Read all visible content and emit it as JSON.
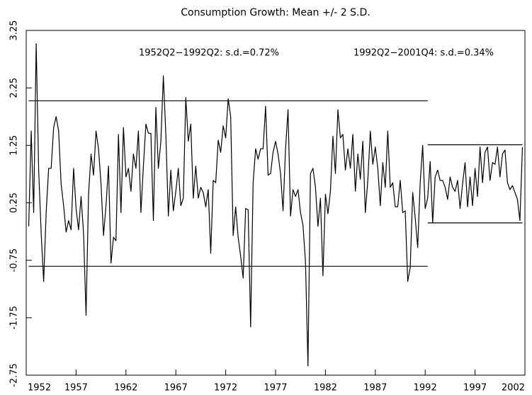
{
  "chart_data": {
    "type": "line",
    "title": "Consumption Growth: Mean +/- 2 S.D.",
    "annotations": [
      "1952Q2−1992Q2: s.d.=0.72%",
      "1992Q2−2001Q4: s.d.=0.34%"
    ],
    "x": [
      1952.25,
      1952.5,
      1952.75,
      1953,
      1953.25,
      1953.5,
      1953.75,
      1954,
      1954.25,
      1954.5,
      1954.75,
      1955,
      1955.25,
      1955.5,
      1955.75,
      1956,
      1956.25,
      1956.5,
      1956.75,
      1957,
      1957.25,
      1957.5,
      1957.75,
      1958,
      1958.25,
      1958.5,
      1958.75,
      1959,
      1959.25,
      1959.5,
      1959.75,
      1960,
      1960.25,
      1960.5,
      1960.75,
      1961,
      1961.25,
      1961.5,
      1961.75,
      1962,
      1962.25,
      1962.5,
      1962.75,
      1963,
      1963.25,
      1963.5,
      1963.75,
      1964,
      1964.25,
      1964.5,
      1964.75,
      1965,
      1965.25,
      1965.5,
      1965.75,
      1966,
      1966.25,
      1966.5,
      1966.75,
      1967,
      1967.25,
      1967.5,
      1967.75,
      1968,
      1968.25,
      1968.5,
      1968.75,
      1969,
      1969.25,
      1969.5,
      1969.75,
      1970,
      1970.25,
      1970.5,
      1970.75,
      1971,
      1971.25,
      1971.5,
      1971.75,
      1972,
      1972.25,
      1972.5,
      1972.75,
      1973,
      1973.25,
      1973.5,
      1973.75,
      1974,
      1974.25,
      1974.5,
      1974.75,
      1975,
      1975.25,
      1975.5,
      1975.75,
      1976,
      1976.25,
      1976.5,
      1976.75,
      1977,
      1977.25,
      1977.5,
      1977.75,
      1978,
      1978.25,
      1978.5,
      1978.75,
      1979,
      1979.25,
      1979.5,
      1979.75,
      1980,
      1980.25,
      1980.5,
      1980.75,
      1981,
      1981.25,
      1981.5,
      1981.75,
      1982,
      1982.25,
      1982.5,
      1982.75,
      1983,
      1983.25,
      1983.5,
      1983.75,
      1984,
      1984.25,
      1984.5,
      1984.75,
      1985,
      1985.25,
      1985.5,
      1985.75,
      1986,
      1986.25,
      1986.5,
      1986.75,
      1987,
      1987.25,
      1987.5,
      1987.75,
      1988,
      1988.25,
      1988.5,
      1988.75,
      1989,
      1989.25,
      1989.5,
      1989.75,
      1990,
      1990.25,
      1990.5,
      1990.75,
      1991,
      1991.25,
      1991.5,
      1991.75,
      1992,
      1992.25,
      1992.5,
      1992.75,
      1993,
      1993.25,
      1993.5,
      1993.75,
      1994,
      1994.25,
      1994.5,
      1994.75,
      1995,
      1995.25,
      1995.5,
      1995.75,
      1996,
      1996.25,
      1996.5,
      1996.75,
      1997,
      1997.25,
      1997.5,
      1997.75,
      1998,
      1998.25,
      1998.5,
      1998.75,
      1999,
      1999.25,
      1999.5,
      1999.75,
      2000,
      2000.25,
      2000.5,
      2000.75,
      2001,
      2001.25,
      2001.5,
      2001.75
    ],
    "series": [
      {
        "color": "#000000",
        "values": [
          -0.16,
          1.5,
          0.08,
          3.02,
          0.82,
          -0.28,
          -1.12,
          0.08,
          0.85,
          0.85,
          1.56,
          1.75,
          1.5,
          0.58,
          0.2,
          -0.26,
          -0.06,
          -0.22,
          0.85,
          0.15,
          -0.22,
          0.36,
          -0.28,
          -1.71,
          0.4,
          1.1,
          0.73,
          1.5,
          1.19,
          0.58,
          -0.32,
          0.2,
          0.89,
          -0.8,
          -0.35,
          -0.41,
          1.44,
          0.08,
          1.56,
          0.7,
          0.85,
          0.45,
          1.1,
          0.85,
          1.5,
          0.08,
          0.89,
          1.62,
          1.46,
          1.46,
          -0.06,
          1.91,
          0.85,
          1.32,
          2.46,
          1.44,
          0.02,
          0.82,
          0.11,
          0.45,
          0.85,
          0.2,
          0.33,
          2.08,
          1.32,
          1.62,
          0.33,
          0.89,
          0.33,
          0.52,
          0.43,
          0.18,
          0.48,
          -0.63,
          0.64,
          0.6,
          1.34,
          1.13,
          1.59,
          1.38,
          2.06,
          1.75,
          -0.32,
          0.18,
          -0.35,
          -0.68,
          -1.06,
          0.15,
          0.13,
          -1.91,
          0.6,
          1.19,
          1.01,
          1.19,
          1.19,
          1.93,
          0.73,
          0.76,
          1.13,
          1.32,
          1.1,
          0.76,
          0.11,
          1.19,
          1.87,
          0.02,
          0.48,
          0.36,
          0.48,
          0.08,
          -0.14,
          -0.78,
          -2.59,
          0.76,
          0.85,
          0.52,
          -0.16,
          0.33,
          -1.02,
          0.4,
          0.06,
          0.45,
          1.41,
          0.76,
          1.87,
          1.38,
          1.44,
          0.82,
          1.19,
          0.85,
          1.44,
          0.45,
          1.1,
          0.66,
          1.32,
          0.08,
          0.64,
          1.5,
          0.92,
          1.22,
          0.85,
          0.2,
          0.95,
          0.52,
          1.5,
          0.52,
          0.6,
          0.18,
          0.18,
          0.64,
          0.08,
          0.11,
          -1.12,
          -0.88,
          0.43,
          -0.01,
          -0.53,
          0.6,
          1.25,
          0.15,
          0.33,
          0.97,
          -0.1,
          0.7,
          0.82,
          0.64,
          0.64,
          0.52,
          0.31,
          0.7,
          0.52,
          0.45,
          0.64,
          0.15,
          0.58,
          0.95,
          0.18,
          0.7,
          0.2,
          0.85,
          0.36,
          1.22,
          0.6,
          1.13,
          1.22,
          0.64,
          0.95,
          0.92,
          1.22,
          0.7,
          1.1,
          1.17,
          0.6,
          0.48,
          0.55,
          0.43,
          0.31,
          -0.06,
          1.22
        ]
      }
    ],
    "reference_lines": [
      {
        "from": 1952.25,
        "to": 1992.25,
        "y": 2.025
      },
      {
        "from": 1952.25,
        "to": 1992.25,
        "y": -0.855
      },
      {
        "from": 1992.25,
        "to": 2001.75,
        "y": 1.26
      },
      {
        "from": 1992.25,
        "to": 2001.75,
        "y": -0.1
      }
    ],
    "reference_color": "#000000",
    "xlim": [
      1952,
      2002
    ],
    "xticks": [
      1952,
      1957,
      1962,
      1967,
      1972,
      1977,
      1982,
      1987,
      1992,
      1997,
      2002
    ],
    "ylim": [
      -2.75,
      3.25
    ],
    "yticks": [
      -2.75,
      -1.75,
      -0.75,
      0.25,
      1.25,
      2.25,
      3.25
    ],
    "grid": false
  }
}
